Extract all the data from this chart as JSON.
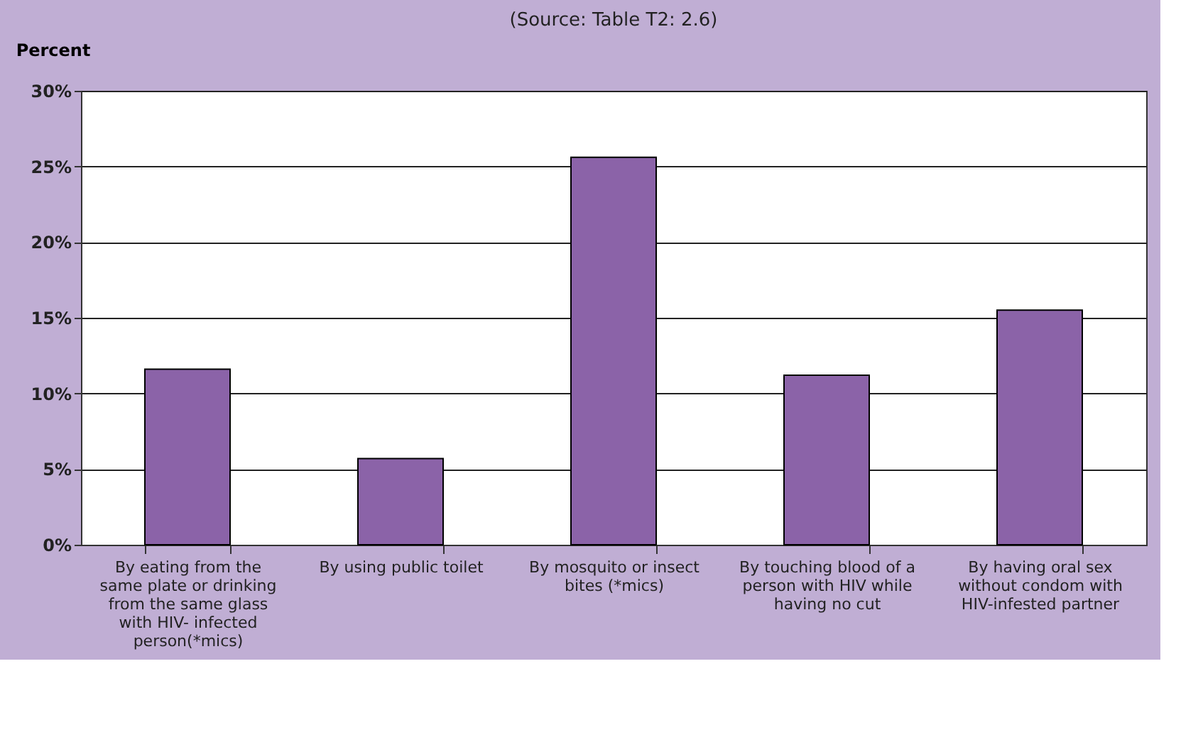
{
  "chart_data": {
    "type": "bar",
    "ylabel": "Percent",
    "annotations": [
      "(Source: Table T2: 2.6)"
    ],
    "categories": [
      "By eating from the same plate or drinking from the same glass with HIV- infected person(*mics)",
      "By using public toilet",
      "By mosquito or insect bites (*mics)",
      "By touching blood of a person with HIV while having no cut",
      "By having oral sex without condom with HIV-infested partner"
    ],
    "values": [
      11.6,
      5.7,
      25.6,
      11.2,
      15.5
    ],
    "color": "#8b63a8",
    "ylim": [
      0,
      30
    ],
    "yticks": [
      {
        "value": 0,
        "label": "0%"
      },
      {
        "value": 5,
        "label": "5%"
      },
      {
        "value": 10,
        "label": "10%"
      },
      {
        "value": 15,
        "label": "15%"
      },
      {
        "value": 20,
        "label": "20%"
      },
      {
        "value": 25,
        "label": "25%"
      },
      {
        "value": 30,
        "label": "30%"
      }
    ],
    "grid": "y"
  }
}
